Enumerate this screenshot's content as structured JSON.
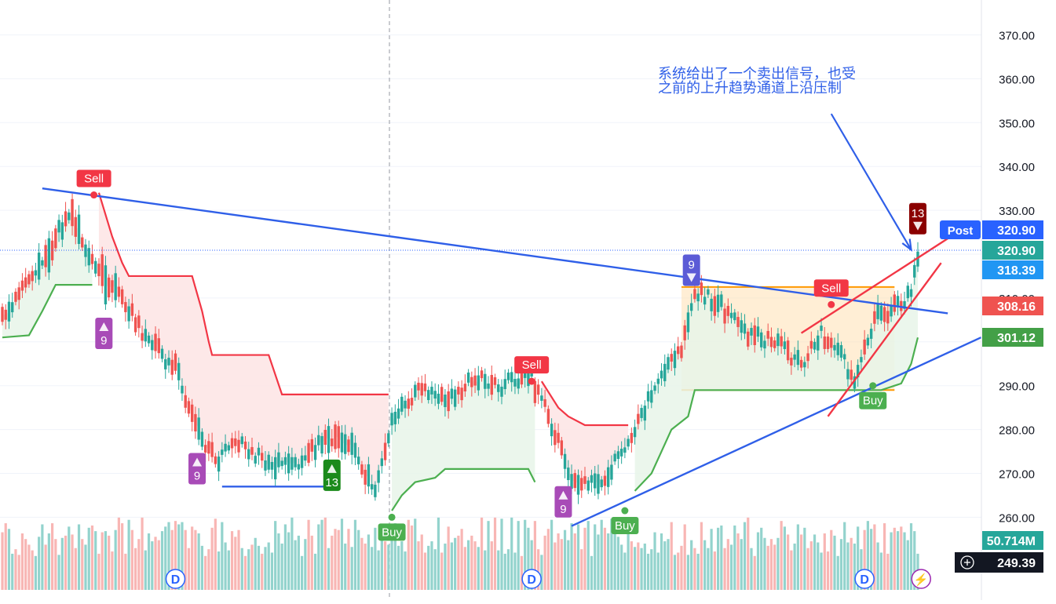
{
  "chart_data": {
    "type": "candlestick",
    "title": "",
    "xlabel": "",
    "ylabel": "",
    "ylim": [
      245,
      375
    ],
    "grid": true,
    "price_axis": {
      "ticks": [
        260,
        270,
        280,
        290,
        300,
        310,
        320,
        330,
        340,
        350,
        360,
        370
      ],
      "tick_labels": [
        "260.00",
        "270.00",
        "280.00",
        "290.00",
        "300.00",
        "310.00",
        "320.00",
        "330.00",
        "340.00",
        "350.00",
        "360.00",
        "370.00"
      ]
    },
    "price_tags": [
      {
        "label": "Post",
        "value": "320.90",
        "color": "#2962ff"
      },
      {
        "value": "320.90",
        "color": "#26a69a"
      },
      {
        "value": "318.39",
        "color": "#2196f3"
      },
      {
        "value": "308.16",
        "color": "#ef5350"
      },
      {
        "value": "301.12",
        "color": "#43a047"
      },
      {
        "value": "50.714M",
        "color": "#26a69a"
      },
      {
        "value": "249.39",
        "color": "#131722"
      }
    ],
    "supertrend": {
      "up_color": "#4caf50",
      "down_color": "#f23645",
      "segments": [
        {
          "dir": "up",
          "points": [
            [
              0,
              301
            ],
            [
              8,
              301.5
            ],
            [
              12,
              307
            ],
            [
              16,
              313
            ],
            [
              27,
              313
            ]
          ]
        },
        {
          "dir": "down",
          "points": [
            [
              29,
              334
            ],
            [
              33,
              324
            ],
            [
              36,
              318
            ],
            [
              38,
              315
            ],
            [
              57,
              315
            ],
            [
              60,
              307
            ],
            [
              62,
              300
            ],
            [
              63,
              297
            ],
            [
              80,
              297
            ],
            [
              84,
              288
            ],
            [
              116,
              288
            ]
          ]
        },
        {
          "dir": "up",
          "points": [
            [
              117,
              261.5
            ],
            [
              120,
              265
            ],
            [
              124,
              268
            ],
            [
              130,
              269
            ],
            [
              133,
              271
            ],
            [
              158,
              271
            ],
            [
              160,
              268
            ]
          ]
        },
        {
          "dir": "down",
          "points": [
            [
              162,
              291
            ],
            [
              167,
              285
            ],
            [
              170,
              283
            ],
            [
              175,
              281
            ],
            [
              188,
              281
            ]
          ]
        },
        {
          "dir": "up",
          "points": [
            [
              190,
              266
            ],
            [
              195,
              270
            ],
            [
              198,
              275
            ],
            [
              201,
              280
            ],
            [
              206,
              283
            ],
            [
              208,
              289
            ],
            [
              264,
              289
            ],
            [
              266,
              289.5
            ],
            [
              268,
              290
            ],
            [
              270,
              290.5
            ],
            [
              271,
              292
            ],
            [
              273,
              295
            ],
            [
              274,
              298
            ],
            [
              275,
              301
            ]
          ]
        }
      ]
    },
    "signals": [
      {
        "label": "Sell",
        "color": "#f23645",
        "x": 27.5,
        "y": 333.5
      },
      {
        "label": "Sell",
        "color": "#f23645",
        "x": 159,
        "y": 291
      },
      {
        "label": "Sell",
        "color": "#f23645",
        "x": 249,
        "y": 308.5
      },
      {
        "label": "Buy",
        "color": "#4caf50",
        "x": 117,
        "y": 260
      },
      {
        "label": "Buy",
        "color": "#4caf50",
        "x": 187,
        "y": 261.5
      },
      {
        "label": "Buy",
        "color": "#4caf50",
        "x": 261.5,
        "y": 290
      }
    ],
    "td_counts": [
      {
        "label": "9",
        "dir": "up",
        "color": "#a84bb7",
        "x": 30.5
      },
      {
        "label": "9",
        "dir": "up",
        "color": "#a84bb7",
        "x": 58.5
      },
      {
        "label": "13",
        "dir": "up",
        "color": "#1b8a1b",
        "x": 99
      },
      {
        "label": "9",
        "dir": "up",
        "color": "#a84bb7",
        "x": 168.5
      },
      {
        "label": "9",
        "dir": "down",
        "color": "#5b5bd6",
        "x": 207
      },
      {
        "label": "13",
        "dir": "down",
        "color": "#8b0000",
        "x": 275
      }
    ],
    "dividend_markers": [
      {
        "label": "D",
        "x": 52
      },
      {
        "label": "D",
        "x": 159
      },
      {
        "label": "D",
        "x": 259
      }
    ],
    "event_markers": [
      {
        "label": "⚡",
        "x": 276
      }
    ],
    "trend_lines": [
      {
        "color": "#2f5fe8",
        "points": [
          [
            12,
            335
          ],
          [
            284,
            306.5
          ]
        ]
      },
      {
        "color": "#2f5fe8",
        "points": [
          [
            171,
            258
          ],
          [
            294,
            301
          ]
        ]
      },
      {
        "color": "#2f5fe8",
        "points": [
          [
            66,
            267
          ],
          [
            98,
            267
          ]
        ]
      },
      {
        "color": "#f23645",
        "points": [
          [
            240,
            302
          ],
          [
            291,
            327
          ]
        ]
      },
      {
        "color": "#f23645",
        "points": [
          [
            248,
            283
          ],
          [
            282,
            318
          ]
        ]
      }
    ],
    "range_box": {
      "x0": 204,
      "x1": 268,
      "y0": 289,
      "y1": 312.5,
      "fill": "#ffe0b2",
      "edge": "#ff9800"
    },
    "annotation_arrow": {
      "color": "#2f5fe8",
      "from": [
        249,
        352
      ],
      "to": [
        273,
        321
      ]
    },
    "current_price_line": 320.9,
    "candles": {
      "n": 277,
      "open": [
        301,
        297,
        295,
        301,
        303,
        301,
        298,
        296,
        294,
        292,
        290,
        290,
        299,
        299,
        292,
        304,
        298,
        292,
        295,
        300,
        296,
        297,
        288,
        282,
        292,
        290,
        293,
        298,
        296,
        299,
        296,
        285,
        299,
        293,
        290,
        299,
        297,
        293,
        291,
        295,
        292,
        288,
        285,
        284,
        287,
        288,
        290,
        285,
        281,
        283,
        285,
        286,
        282,
        277,
        282,
        283,
        280,
        277,
        272,
        267,
        274,
        278,
        277,
        274,
        270,
        269,
        273,
        273,
        274,
        274,
        272,
        271,
        268,
        269,
        268,
        270,
        269,
        270,
        271,
        270,
        272,
        276,
        277,
        284,
        288,
        288,
        289,
        295,
        298,
        300,
        300,
        303,
        303,
        297,
        294,
        298,
        300,
        305,
        301,
        310,
        309,
        301,
        294,
        300,
        306,
        303,
        310,
        314,
        315,
        313,
        309,
        316,
        316,
        319,
        322,
        323,
        318,
        320,
        323,
        326,
        328,
        332,
        333,
        331,
        330,
        333,
        332,
        329,
        328,
        330,
        331,
        332,
        334,
        330,
        333,
        327,
        329,
        334,
        333,
        330,
        329,
        331,
        329,
        327,
        331,
        330,
        334,
        334,
        328,
        327,
        328,
        330,
        332,
        333,
        335,
        336,
        338,
        333,
        334,
        341,
        341,
        334,
        332,
        332,
        331,
        327,
        330,
        326,
        324,
        320,
        324,
        327,
        331,
        327,
        333,
        330,
        329,
        331,
        332,
        336,
        342,
        343,
        341,
        347,
        351,
        352,
        353,
        354,
        354,
        355,
        353,
        355,
        353,
        355,
        359,
        361,
        364,
        364,
        364,
        365,
        370,
        373,
        372,
        377,
        376,
        373,
        369,
        375,
        376,
        374,
        375,
        372,
        373,
        373,
        376,
        370,
        375,
        378,
        374,
        372,
        372,
        373,
        371,
        374,
        376,
        372,
        373,
        367,
        369,
        373,
        374,
        373,
        371,
        370,
        373,
        371,
        372,
        366,
        365,
        365,
        369,
        368,
        368,
        367,
        366,
        367,
        371,
        371,
        368,
        365,
        363,
        363,
        366,
        369,
        369,
        371,
        369,
        372,
        375,
        375,
        371,
        372,
        374,
        371,
        375,
        379,
        375,
        372,
        374,
        369,
        371,
        369,
        370,
        373,
        374,
        377
      ],
      "close": [
        297,
        295,
        301,
        303,
        301,
        298,
        296,
        294,
        292,
        290,
        290,
        299,
        299,
        292,
        304,
        298,
        292,
        295,
        300,
        296,
        297,
        288,
        282,
        292,
        290,
        293,
        298,
        296,
        299,
        296,
        285,
        299,
        293,
        290,
        299,
        297,
        293,
        291,
        295,
        292,
        288,
        285,
        284,
        287,
        288,
        290,
        285,
        281,
        283,
        285,
        286,
        282,
        277,
        282,
        283,
        280,
        277,
        272,
        267,
        274,
        278,
        277,
        274,
        270,
        269,
        273,
        273,
        274,
        274,
        272,
        271,
        268,
        269,
        268,
        270,
        269,
        270,
        271,
        270,
        272,
        276,
        277,
        284,
        288,
        288,
        289,
        295,
        298,
        300,
        300,
        303,
        303,
        297,
        294,
        298,
        300,
        305,
        301,
        310,
        309,
        301,
        294,
        300,
        306,
        303,
        310,
        314,
        315,
        313,
        309,
        316,
        316,
        319,
        322,
        323,
        318,
        320,
        323,
        326,
        328,
        332,
        333,
        331,
        330,
        333,
        332,
        329,
        328,
        330,
        331,
        332,
        334,
        330,
        333,
        327,
        329,
        334,
        333,
        330,
        329,
        331,
        329,
        327,
        331,
        330,
        334,
        334,
        328,
        327,
        328,
        330,
        332,
        333,
        335,
        336,
        338,
        333,
        334,
        341,
        341,
        334,
        332,
        332,
        331,
        327,
        330,
        326,
        324,
        320,
        324,
        327,
        331,
        327,
        333,
        330,
        329,
        331,
        332,
        336,
        342,
        343,
        341,
        347,
        351,
        352,
        353,
        354,
        354,
        355,
        353,
        355,
        353,
        355,
        359,
        361,
        364,
        364,
        364,
        365,
        370,
        373,
        372,
        377,
        376,
        373,
        369,
        375,
        376,
        374,
        375,
        372,
        373,
        373,
        376,
        370,
        375,
        378,
        374,
        372,
        372,
        373,
        371,
        374,
        376,
        372,
        373,
        367,
        369,
        373,
        374,
        373,
        371,
        370,
        373,
        371,
        372,
        366,
        365,
        365,
        369,
        368,
        368,
        367,
        366,
        367,
        371,
        371,
        368,
        365,
        363,
        363,
        366,
        369,
        369,
        371,
        369,
        372,
        375,
        375,
        371,
        372,
        374,
        371,
        375,
        379,
        375,
        372,
        374,
        369,
        371,
        369,
        370,
        373,
        374,
        377,
        381
      ],
      "scale_note": "candles drawn with a monotone path rescaled into the visible price band",
      "volume_max": 65
    }
  }
}
